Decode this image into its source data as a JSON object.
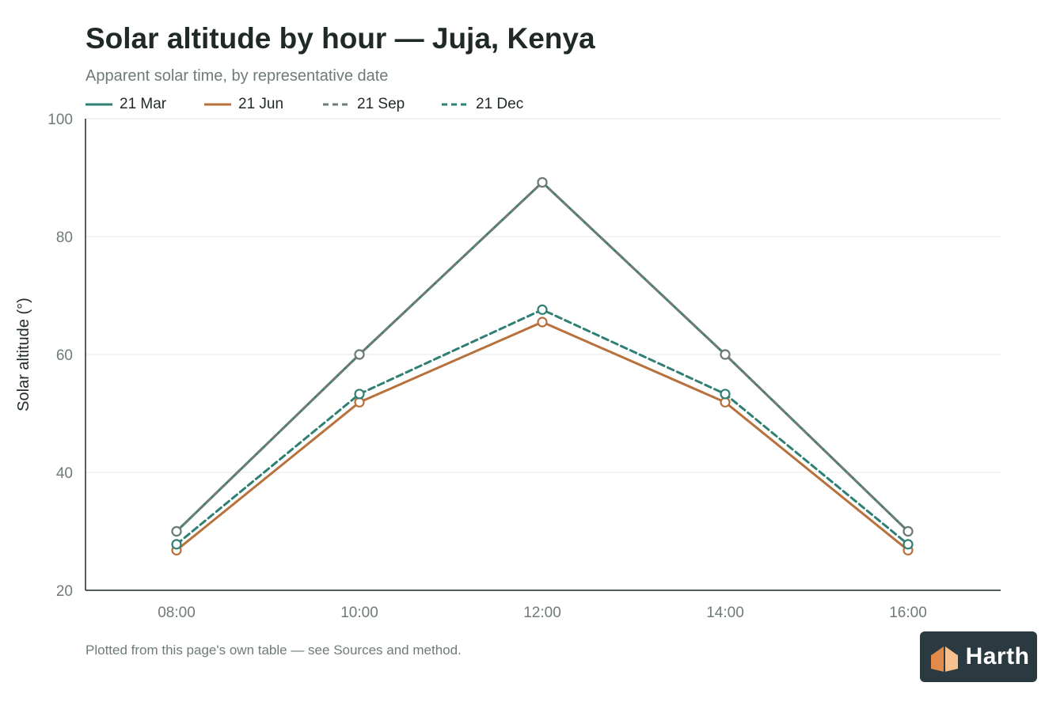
{
  "brand": {
    "name": "Harth",
    "accent": "#f2a66a"
  },
  "footnote": "Plotted from this page's own table — see Sources and method.",
  "chart_data": {
    "type": "line",
    "title": "Solar altitude by hour — Juja, Kenya",
    "subtitle": "Apparent solar time, by representative date",
    "xlabel": "",
    "ylabel": "Solar altitude (°)",
    "categories": [
      "08:00",
      "10:00",
      "12:00",
      "14:00",
      "16:00"
    ],
    "ylim": [
      20,
      100
    ],
    "yticks": [
      20,
      40,
      60,
      80,
      100
    ],
    "grid": true,
    "legend_position": "top-left",
    "series": [
      {
        "name": "21 Mar",
        "values": [
          30,
          60,
          89.2,
          60,
          30
        ],
        "color": "#2f7f74",
        "dash": "solid"
      },
      {
        "name": "21 Jun",
        "values": [
          26.8,
          51.9,
          65.5,
          51.9,
          26.8
        ],
        "color": "#b8703c",
        "dash": "solid"
      },
      {
        "name": "21 Sep",
        "values": [
          30,
          60,
          89.2,
          60,
          30
        ],
        "color": "#6f7b77",
        "dash": "dashed"
      },
      {
        "name": "21 Dec",
        "values": [
          27.8,
          53.3,
          67.6,
          53.3,
          27.8
        ],
        "color": "#2f7f74",
        "dash": "dashed"
      }
    ]
  }
}
